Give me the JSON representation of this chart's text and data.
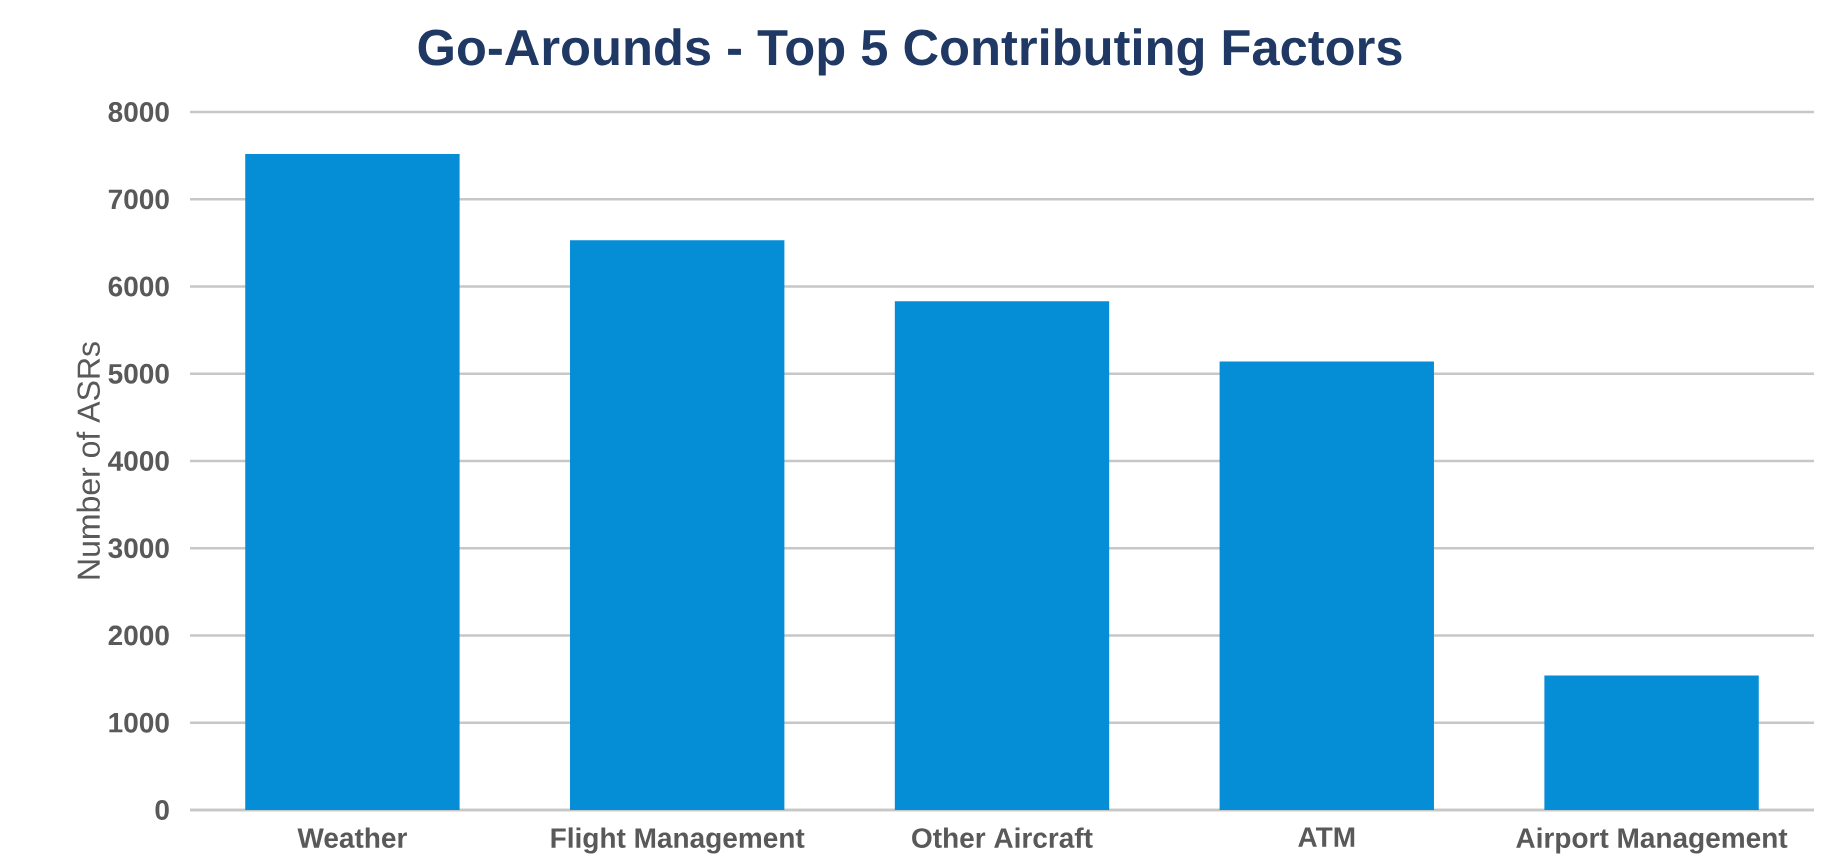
{
  "chart_data": {
    "type": "bar",
    "title": "Go-Arounds - Top 5 Contributing Factors",
    "ylabel": "Number of ASRs",
    "categories": [
      "Weather",
      "Flight Management",
      "Other Aircraft",
      "ATM",
      "Airport Management"
    ],
    "values": [
      7520,
      6530,
      5830,
      5140,
      1540
    ],
    "color": "#058dd6",
    "ylim": [
      0,
      8000
    ],
    "yticks": [
      0,
      1000,
      2000,
      3000,
      4000,
      5000,
      6000,
      7000,
      8000
    ],
    "grid": "y"
  }
}
